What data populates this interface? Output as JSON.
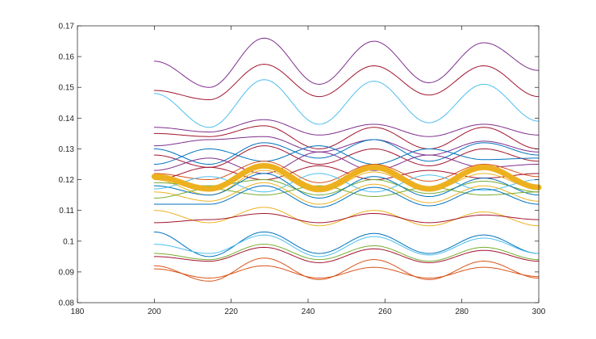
{
  "chart_data": {
    "type": "line",
    "title": "",
    "xlabel": "",
    "ylabel": "",
    "xlim": [
      180,
      300
    ],
    "ylim": [
      0.08,
      0.17
    ],
    "x_ticks": [
      180,
      200,
      220,
      240,
      260,
      280,
      300
    ],
    "x_tick_labels": [
      "180",
      "200",
      "220",
      "240",
      "260",
      "280",
      "300"
    ],
    "y_ticks": [
      0.08,
      0.09,
      0.1,
      0.11,
      0.12,
      0.13,
      0.14,
      0.15,
      0.16,
      0.17
    ],
    "y_tick_labels": [
      "0.08",
      "0.09",
      "0.1",
      "0.11",
      "0.12",
      "0.13",
      "0.14",
      "0.15",
      "0.16",
      "0.17"
    ],
    "grid": false,
    "legend": "none",
    "x_range_of_lines": [
      200,
      300
    ],
    "period": 30,
    "series": [
      {
        "color": "#7E2F8E",
        "values": [
          0.1585,
          0.15,
          0.166,
          0.151,
          0.165,
          0.1515,
          0.1645,
          0.1555
        ]
      },
      {
        "color": "#A2142F",
        "values": [
          0.149,
          0.146,
          0.1575,
          0.147,
          0.157,
          0.1475,
          0.157,
          0.147
        ]
      },
      {
        "color": "#4DBEEE",
        "values": [
          0.148,
          0.137,
          0.1525,
          0.138,
          0.152,
          0.1385,
          0.151,
          0.139
        ]
      },
      {
        "color": "#7E2F8E",
        "values": [
          0.137,
          0.1355,
          0.1395,
          0.1345,
          0.138,
          0.134,
          0.138,
          0.1345
        ]
      },
      {
        "color": "#A2142F",
        "values": [
          0.135,
          0.134,
          0.1375,
          0.13,
          0.137,
          0.13,
          0.137,
          0.13
        ]
      },
      {
        "color": "#7E2F8E",
        "values": [
          0.131,
          0.133,
          0.134,
          0.129,
          0.133,
          0.128,
          0.1325,
          0.129
        ]
      },
      {
        "color": "#0072BD",
        "values": [
          0.13,
          0.125,
          0.132,
          0.127,
          0.133,
          0.126,
          0.132,
          0.128
        ]
      },
      {
        "color": "#A2142F",
        "values": [
          0.128,
          0.124,
          0.131,
          0.125,
          0.13,
          0.1245,
          0.13,
          0.126
        ]
      },
      {
        "color": "#0072BD",
        "values": [
          0.125,
          0.13,
          0.126,
          0.131,
          0.125,
          0.13,
          0.1265,
          0.127
        ]
      },
      {
        "color": "#7E2F8E",
        "values": [
          0.123,
          0.127,
          0.122,
          0.129,
          0.123,
          0.128,
          0.124,
          0.125
        ]
      },
      {
        "color": "#D95319",
        "values": [
          0.122,
          0.12,
          0.126,
          0.119,
          0.125,
          0.1195,
          0.125,
          0.121
        ]
      },
      {
        "color": "#A2142F",
        "values": [
          0.12,
          0.124,
          0.12,
          0.1245,
          0.12,
          0.123,
          0.1205,
          0.122
        ]
      },
      {
        "color": "#EDB120",
        "values": [
          0.12,
          0.115,
          0.123,
          0.116,
          0.1225,
          0.1165,
          0.122,
          0.117
        ]
      },
      {
        "color": "#77AC30",
        "values": [
          0.119,
          0.118,
          0.12,
          0.115,
          0.12,
          0.1155,
          0.1195,
          0.116
        ]
      },
      {
        "color": "#0072BD",
        "values": [
          0.118,
          0.115,
          0.122,
          0.114,
          0.121,
          0.1145,
          0.1205,
          0.115
        ]
      },
      {
        "color": "#4DBEEE",
        "values": [
          0.117,
          0.121,
          0.116,
          0.122,
          0.116,
          0.1215,
          0.1165,
          0.12
        ]
      },
      {
        "color": "#EDB120",
        "values": [
          0.116,
          0.113,
          0.119,
          0.112,
          0.1185,
          0.1125,
          0.118,
          0.113
        ]
      },
      {
        "color": "#77AC30",
        "values": [
          0.114,
          0.117,
          0.115,
          0.118,
          0.1145,
          0.1175,
          0.115,
          0.116
        ]
      },
      {
        "color": "#0072BD",
        "values": [
          0.112,
          0.112,
          0.118,
          0.111,
          0.1175,
          0.1115,
          0.117,
          0.112
        ]
      },
      {
        "color": "#EDB120",
        "values": [
          0.11,
          0.106,
          0.111,
          0.105,
          0.11,
          0.105,
          0.1095,
          0.105
        ]
      },
      {
        "color": "#A2142F",
        "values": [
          0.106,
          0.107,
          0.109,
          0.106,
          0.109,
          0.106,
          0.1085,
          0.107
        ]
      },
      {
        "color": "#0072BD",
        "values": [
          0.103,
          0.095,
          0.103,
          0.096,
          0.1025,
          0.096,
          0.102,
          0.096
        ]
      },
      {
        "color": "#4DBEEE",
        "values": [
          0.099,
          0.096,
          0.102,
          0.095,
          0.1015,
          0.0955,
          0.101,
          0.096
        ]
      },
      {
        "color": "#77AC30",
        "values": [
          0.096,
          0.094,
          0.099,
          0.094,
          0.0985,
          0.0935,
          0.098,
          0.094
        ]
      },
      {
        "color": "#A2142F",
        "values": [
          0.095,
          0.0935,
          0.098,
          0.093,
          0.0975,
          0.093,
          0.097,
          0.0935
        ]
      },
      {
        "color": "#D95319",
        "values": [
          0.092,
          0.087,
          0.0945,
          0.0875,
          0.094,
          0.0875,
          0.0935,
          0.088
        ]
      },
      {
        "color": "#D95319",
        "values": [
          0.091,
          0.088,
          0.092,
          0.088,
          0.0915,
          0.088,
          0.0915,
          0.0885
        ]
      },
      {
        "color": "#EDB120",
        "values": [
          0.121,
          0.117,
          0.1245,
          0.117,
          0.124,
          0.117,
          0.124,
          0.1175
        ],
        "emphasis": true
      }
    ]
  }
}
